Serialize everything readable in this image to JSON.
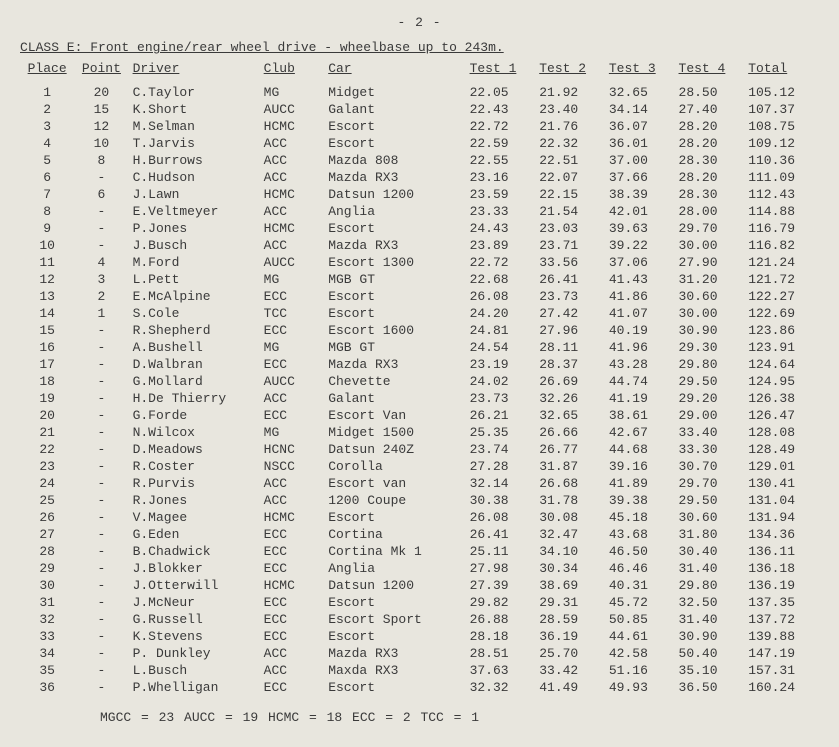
{
  "page_number": "- 2 -",
  "title": "CLASS E: Front engine/rear wheel drive - wheelbase up to 243m.",
  "headers": {
    "place": "Place",
    "point": "Point",
    "driver": "Driver",
    "club": "Club",
    "car": "Car",
    "test1": "Test 1",
    "test2": "Test 2",
    "test3": "Test 3",
    "test4": "Test 4",
    "total": "Total"
  },
  "rows": [
    {
      "place": "1",
      "point": "20",
      "driver": "C.Taylor",
      "club": "MG",
      "car": "Midget",
      "t1": "22.05",
      "t2": "21.92",
      "t3": "32.65",
      "t4": "28.50",
      "total": "105.12"
    },
    {
      "place": "2",
      "point": "15",
      "driver": "K.Short",
      "club": "AUCC",
      "car": "Galant",
      "t1": "22.43",
      "t2": "23.40",
      "t3": "34.14",
      "t4": "27.40",
      "total": "107.37"
    },
    {
      "place": "3",
      "point": "12",
      "driver": "M.Selman",
      "club": "HCMC",
      "car": "Escort",
      "t1": "22.72",
      "t2": "21.76",
      "t3": "36.07",
      "t4": "28.20",
      "total": "108.75"
    },
    {
      "place": "4",
      "point": "10",
      "driver": "T.Jarvis",
      "club": "ACC",
      "car": "Escort",
      "t1": "22.59",
      "t2": "22.32",
      "t3": "36.01",
      "t4": "28.20",
      "total": "109.12"
    },
    {
      "place": "5",
      "point": "8",
      "driver": "H.Burrows",
      "club": "ACC",
      "car": "Mazda 808",
      "t1": "22.55",
      "t2": "22.51",
      "t3": "37.00",
      "t4": "28.30",
      "total": "110.36"
    },
    {
      "place": "6",
      "point": "-",
      "driver": "C.Hudson",
      "club": "ACC",
      "car": "Mazda RX3",
      "t1": "23.16",
      "t2": "22.07",
      "t3": "37.66",
      "t4": "28.20",
      "total": "111.09"
    },
    {
      "place": "7",
      "point": "6",
      "driver": "J.Lawn",
      "club": "HCMC",
      "car": "Datsun 1200",
      "t1": "23.59",
      "t2": "22.15",
      "t3": "38.39",
      "t4": "28.30",
      "total": "112.43"
    },
    {
      "place": "8",
      "point": "-",
      "driver": "E.Veltmeyer",
      "club": "ACC",
      "car": "Anglia",
      "t1": "23.33",
      "t2": "21.54",
      "t3": "42.01",
      "t4": "28.00",
      "total": "114.88"
    },
    {
      "place": "9",
      "point": "-",
      "driver": "P.Jones",
      "club": "HCMC",
      "car": "Escort",
      "t1": "24.43",
      "t2": "23.03",
      "t3": "39.63",
      "t4": "29.70",
      "total": "116.79"
    },
    {
      "place": "10",
      "point": "-",
      "driver": "J.Busch",
      "club": "ACC",
      "car": "Mazda RX3",
      "t1": "23.89",
      "t2": "23.71",
      "t3": "39.22",
      "t4": "30.00",
      "total": "116.82"
    },
    {
      "place": "11",
      "point": "4",
      "driver": "M.Ford",
      "club": "AUCC",
      "car": "Escort 1300",
      "t1": "22.72",
      "t2": "33.56",
      "t3": "37.06",
      "t4": "27.90",
      "total": "121.24"
    },
    {
      "place": "12",
      "point": "3",
      "driver": "L.Pett",
      "club": "MG",
      "car": "MGB GT",
      "t1": "22.68",
      "t2": "26.41",
      "t3": "41.43",
      "t4": "31.20",
      "total": "121.72"
    },
    {
      "place": "13",
      "point": "2",
      "driver": "E.McAlpine",
      "club": "ECC",
      "car": "Escort",
      "t1": "26.08",
      "t2": "23.73",
      "t3": "41.86",
      "t4": "30.60",
      "total": "122.27"
    },
    {
      "place": "14",
      "point": "1",
      "driver": "S.Cole",
      "club": "TCC",
      "car": "Escort",
      "t1": "24.20",
      "t2": "27.42",
      "t3": "41.07",
      "t4": "30.00",
      "total": "122.69"
    },
    {
      "place": "15",
      "point": "-",
      "driver": "R.Shepherd",
      "club": "ECC",
      "car": "Escort 1600",
      "t1": "24.81",
      "t2": "27.96",
      "t3": "40.19",
      "t4": "30.90",
      "total": "123.86"
    },
    {
      "place": "16",
      "point": "-",
      "driver": "A.Bushell",
      "club": "MG",
      "car": "MGB GT",
      "t1": "24.54",
      "t2": "28.11",
      "t3": "41.96",
      "t4": "29.30",
      "total": "123.91"
    },
    {
      "place": "17",
      "point": "-",
      "driver": "D.Walbran",
      "club": "ECC",
      "car": "Mazda RX3",
      "t1": "23.19",
      "t2": "28.37",
      "t3": "43.28",
      "t4": "29.80",
      "total": "124.64"
    },
    {
      "place": "18",
      "point": "-",
      "driver": "G.Mollard",
      "club": "AUCC",
      "car": "Chevette",
      "t1": "24.02",
      "t2": "26.69",
      "t3": "44.74",
      "t4": "29.50",
      "total": "124.95"
    },
    {
      "place": "19",
      "point": "-",
      "driver": "H.De Thierry",
      "club": "ACC",
      "car": "Galant",
      "t1": "23.73",
      "t2": "32.26",
      "t3": "41.19",
      "t4": "29.20",
      "total": "126.38"
    },
    {
      "place": "20",
      "point": "-",
      "driver": "G.Forde",
      "club": "ECC",
      "car": "Escort Van",
      "t1": "26.21",
      "t2": "32.65",
      "t3": "38.61",
      "t4": "29.00",
      "total": "126.47"
    },
    {
      "place": "21",
      "point": "-",
      "driver": "N.Wilcox",
      "club": "MG",
      "car": "Midget 1500",
      "t1": "25.35",
      "t2": "26.66",
      "t3": "42.67",
      "t4": "33.40",
      "total": "128.08"
    },
    {
      "place": "22",
      "point": "-",
      "driver": "D.Meadows",
      "club": "HCNC",
      "car": "Datsun 240Z",
      "t1": "23.74",
      "t2": "26.77",
      "t3": "44.68",
      "t4": "33.30",
      "total": "128.49"
    },
    {
      "place": "23",
      "point": "-",
      "driver": "R.Coster",
      "club": "NSCC",
      "car": "Corolla",
      "t1": "27.28",
      "t2": "31.87",
      "t3": "39.16",
      "t4": "30.70",
      "total": "129.01"
    },
    {
      "place": "24",
      "point": "-",
      "driver": "R.Purvis",
      "club": "ACC",
      "car": "Escort van",
      "t1": "32.14",
      "t2": "26.68",
      "t3": "41.89",
      "t4": "29.70",
      "total": "130.41"
    },
    {
      "place": "25",
      "point": "-",
      "driver": "R.Jones",
      "club": "ACC",
      "car": "1200 Coupe",
      "t1": "30.38",
      "t2": "31.78",
      "t3": "39.38",
      "t4": "29.50",
      "total": "131.04"
    },
    {
      "place": "26",
      "point": "-",
      "driver": "V.Magee",
      "club": "HCMC",
      "car": "Escort",
      "t1": "26.08",
      "t2": "30.08",
      "t3": "45.18",
      "t4": "30.60",
      "total": "131.94"
    },
    {
      "place": "27",
      "point": "-",
      "driver": "G.Eden",
      "club": "ECC",
      "car": "Cortina",
      "t1": "26.41",
      "t2": "32.47",
      "t3": "43.68",
      "t4": "31.80",
      "total": "134.36"
    },
    {
      "place": "28",
      "point": "-",
      "driver": "B.Chadwick",
      "club": "ECC",
      "car": "Cortina Mk 1",
      "t1": "25.11",
      "t2": "34.10",
      "t3": "46.50",
      "t4": "30.40",
      "total": "136.11"
    },
    {
      "place": "29",
      "point": "-",
      "driver": "J.Blokker",
      "club": "ECC",
      "car": "Anglia",
      "t1": "27.98",
      "t2": "30.34",
      "t3": "46.46",
      "t4": "31.40",
      "total": "136.18"
    },
    {
      "place": "30",
      "point": "-",
      "driver": "J.Otterwill",
      "club": "HCMC",
      "car": "Datsun 1200",
      "t1": "27.39",
      "t2": "38.69",
      "t3": "40.31",
      "t4": "29.80",
      "total": "136.19"
    },
    {
      "place": "31",
      "point": "-",
      "driver": "J.McNeur",
      "club": "ECC",
      "car": "Escort",
      "t1": "29.82",
      "t2": "29.31",
      "t3": "45.72",
      "t4": "32.50",
      "total": "137.35"
    },
    {
      "place": "32",
      "point": "-",
      "driver": "G.Russell",
      "club": "ECC",
      "car": "Escort Sport",
      "t1": "26.88",
      "t2": "28.59",
      "t3": "50.85",
      "t4": "31.40",
      "total": "137.72"
    },
    {
      "place": "33",
      "point": "-",
      "driver": "K.Stevens",
      "club": "ECC",
      "car": "Escort",
      "t1": "28.18",
      "t2": "36.19",
      "t3": "44.61",
      "t4": "30.90",
      "total": "139.88"
    },
    {
      "place": "34",
      "point": "-",
      "driver": "P. Dunkley",
      "club": "ACC",
      "car": "Mazda RX3",
      "t1": "28.51",
      "t2": "25.70",
      "t3": "42.58",
      "t4": "50.40",
      "total": "147.19"
    },
    {
      "place": "35",
      "point": "-",
      "driver": "L.Busch",
      "club": "ACC",
      "car": "Maxda RX3",
      "t1": "37.63",
      "t2": "33.42",
      "t3": "51.16",
      "t4": "35.10",
      "total": "157.31"
    },
    {
      "place": "36",
      "point": "-",
      "driver": "P.Whelligan",
      "club": "ECC",
      "car": "Escort",
      "t1": "32.32",
      "t2": "41.49",
      "t3": "49.93",
      "t4": "36.50",
      "total": "160.24"
    }
  ],
  "footer": "MGCC = 23   AUCC = 19   HCMC = 18   ECC = 2   TCC = 1"
}
